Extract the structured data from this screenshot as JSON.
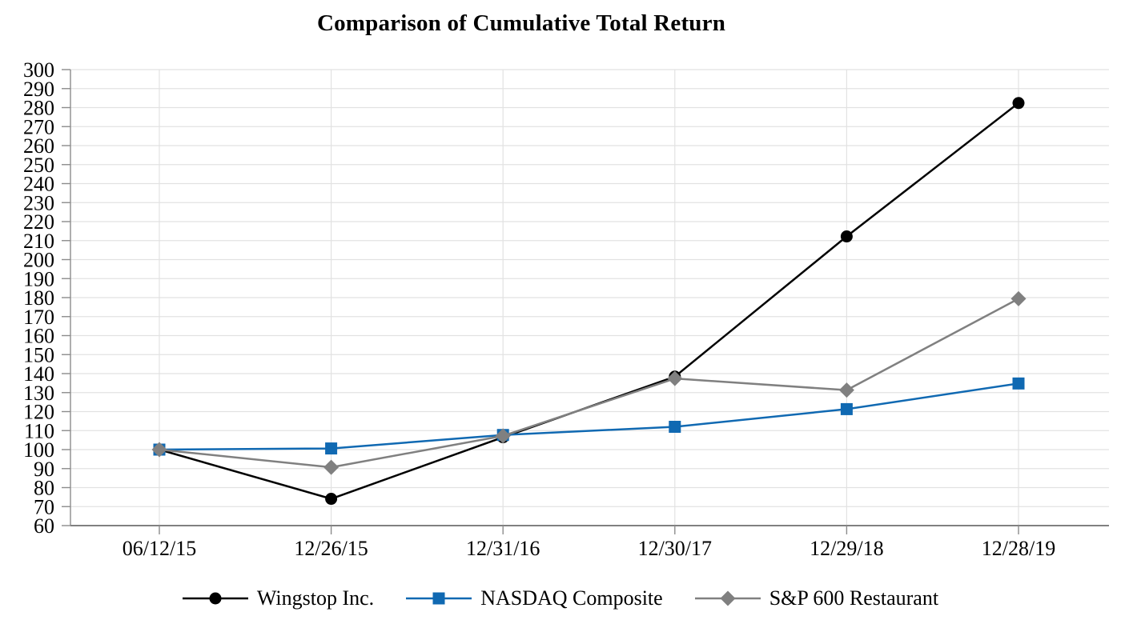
{
  "chart_data": {
    "type": "line",
    "title": "Comparison of Cumulative Total Return",
    "categories": [
      "06/12/15",
      "12/26/15",
      "12/31/16",
      "12/30/17",
      "12/29/18",
      "12/28/19"
    ],
    "series": [
      {
        "name": "Wingstop Inc.",
        "marker": "circle",
        "color": "#000000",
        "values": [
          100,
          74.1,
          106.5,
          138.4,
          212.2,
          282.4
        ]
      },
      {
        "name": "NASDAQ Composite",
        "marker": "square",
        "color": "#1069B2",
        "values": [
          100,
          100.6,
          107.7,
          112.0,
          121.3,
          134.8
        ]
      },
      {
        "name": "S&P 600 Restaurant",
        "marker": "diamond",
        "color": "#808080",
        "values": [
          100,
          90.7,
          107.2,
          137.4,
          131.3,
          179.4
        ]
      }
    ],
    "xlabel": "",
    "ylabel": "",
    "ylim": [
      60,
      300
    ],
    "ytick_step": 10,
    "grid": "horizontal-and-vertical-category",
    "legend_position": "bottom",
    "colors": {
      "gridline": "#E2E2E2",
      "axis": "#808080",
      "tick": "#8C8C8C",
      "text": "#000000"
    }
  }
}
